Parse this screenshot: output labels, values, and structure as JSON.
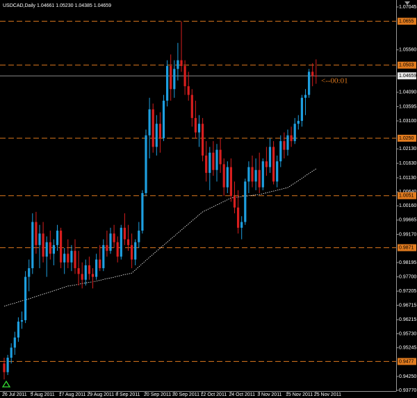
{
  "chart_data": {
    "type": "candlestick",
    "title": "USDCAD,Daily  1.04661 1.05230 1.04385 1.04659",
    "annotation": "<--00:01",
    "categories": [
      "26 Jul 2011",
      null,
      null,
      null,
      null,
      null,
      null,
      null,
      "5 Aug 2011",
      null,
      null,
      null,
      null,
      null,
      null,
      null,
      "17 Aug 2011",
      null,
      null,
      null,
      null,
      null,
      null,
      null,
      "29 Aug 2011",
      null,
      null,
      null,
      null,
      null,
      null,
      null,
      "8 Sep 2011",
      null,
      null,
      null,
      null,
      null,
      null,
      null,
      "20 Sep 2011",
      null,
      null,
      null,
      null,
      null,
      null,
      null,
      "30 Sep 2011",
      null,
      null,
      null,
      null,
      null,
      null,
      null,
      "12 Oct 2011",
      null,
      null,
      null,
      null,
      null,
      null,
      null,
      "24 Oct 2011",
      null,
      null,
      null,
      null,
      null,
      null,
      null,
      "3 Nov 2011",
      null,
      null,
      null,
      null,
      null,
      null,
      null,
      "15 Nov 2011",
      null,
      null,
      null,
      null,
      null,
      null,
      null,
      "25 Nov 2011"
    ],
    "open": [
      0.947,
      0.944,
      0.949,
      0.9525,
      0.956,
      0.9615,
      0.962,
      0.977,
      0.98,
      0.996,
      0.988,
      0.992,
      0.984,
      0.989,
      0.985,
      0.988,
      0.993,
      0.982,
      0.985,
      0.982,
      0.986,
      0.98,
      0.978,
      0.976,
      0.981,
      0.978,
      0.977,
      0.983,
      0.98,
      0.988,
      0.986,
      0.992,
      0.989,
      0.984,
      0.994,
      0.99,
      0.988,
      0.983,
      0.989,
      0.993,
      1.006,
      1.026,
      1.035,
      1.022,
      1.03,
      1.025,
      1.038,
      1.05,
      1.042,
      1.049,
      1.052,
      1.05,
      1.043,
      1.04,
      1.032,
      1.027,
      1.03,
      1.019,
      1.013,
      1.02,
      1.014,
      1.021,
      1.016,
      1.008,
      1.015,
      1.005,
      1.001,
      0.994,
      0.996,
      1.01,
      1.015,
      1.01,
      1.014,
      1.008,
      1.017,
      1.015,
      1.022,
      1.01,
      1.017,
      1.024,
      1.021,
      1.026,
      1.024,
      1.03,
      1.031,
      1.039,
      1.04,
      1.048,
      1.04661
    ],
    "high": [
      0.949,
      0.95,
      0.954,
      0.958,
      0.963,
      0.965,
      0.979,
      0.983,
      0.999,
      0.9995,
      0.995,
      0.996,
      0.991,
      0.993,
      0.99,
      0.995,
      0.994,
      0.987,
      0.99,
      0.988,
      0.99,
      0.986,
      0.982,
      0.983,
      0.984,
      0.98,
      0.985,
      0.988,
      0.99,
      0.993,
      0.994,
      0.995,
      0.991,
      0.995,
      0.999,
      0.995,
      0.992,
      0.99,
      0.996,
      1.007,
      1.028,
      1.039,
      1.037,
      1.033,
      1.034,
      1.04,
      1.052,
      1.054,
      1.052,
      1.058,
      1.0655,
      1.052,
      1.048,
      1.042,
      1.038,
      1.033,
      1.032,
      1.024,
      1.022,
      1.024,
      1.023,
      1.025,
      1.018,
      1.017,
      1.018,
      1.01,
      1.007,
      0.998,
      1.011,
      1.017,
      1.019,
      1.018,
      1.02,
      1.018,
      1.022,
      1.025,
      1.024,
      1.019,
      1.026,
      1.027,
      1.028,
      1.029,
      1.032,
      1.033,
      1.04,
      1.042,
      1.049,
      1.051,
      1.0523
    ],
    "low": [
      0.9415,
      0.943,
      0.947,
      0.95,
      0.9545,
      0.959,
      0.961,
      0.972,
      0.978,
      0.985,
      0.98,
      0.982,
      0.977,
      0.983,
      0.981,
      0.986,
      0.98,
      0.978,
      0.98,
      0.979,
      0.978,
      0.974,
      0.973,
      0.974,
      0.976,
      0.973,
      0.976,
      0.979,
      0.979,
      0.984,
      0.985,
      0.987,
      0.982,
      0.983,
      0.988,
      0.986,
      0.98,
      0.981,
      0.987,
      0.992,
      1.005,
      1.018,
      1.02,
      1.019,
      1.02,
      1.024,
      1.036,
      1.038,
      1.039,
      1.045,
      1.048,
      1.04,
      1.038,
      1.029,
      1.025,
      1.022,
      1.017,
      1.01,
      1.007,
      1.012,
      1.01,
      1.013,
      1.005,
      1.006,
      1.003,
      0.999,
      0.992,
      0.99,
      0.995,
      1.006,
      1.008,
      1.007,
      1.006,
      1.007,
      1.012,
      1.013,
      1.009,
      1.008,
      1.015,
      1.018,
      1.019,
      1.022,
      1.023,
      1.028,
      1.029,
      1.033,
      1.039,
      1.043,
      1.04385
    ],
    "close": [
      0.944,
      0.949,
      0.9525,
      0.956,
      0.9615,
      0.962,
      0.977,
      0.98,
      0.996,
      0.988,
      0.992,
      0.984,
      0.989,
      0.985,
      0.988,
      0.993,
      0.982,
      0.985,
      0.982,
      0.986,
      0.98,
      0.978,
      0.976,
      0.981,
      0.978,
      0.977,
      0.983,
      0.98,
      0.988,
      0.986,
      0.992,
      0.989,
      0.984,
      0.994,
      0.99,
      0.988,
      0.983,
      0.989,
      0.993,
      1.006,
      1.026,
      1.035,
      1.022,
      1.03,
      1.025,
      1.038,
      1.05,
      1.042,
      1.049,
      1.052,
      1.05,
      1.043,
      1.04,
      1.032,
      1.027,
      1.03,
      1.019,
      1.013,
      1.02,
      1.014,
      1.021,
      1.016,
      1.008,
      1.015,
      1.005,
      1.001,
      0.994,
      0.996,
      1.01,
      1.015,
      1.01,
      1.014,
      1.008,
      1.017,
      1.015,
      1.022,
      1.01,
      1.017,
      1.024,
      1.021,
      1.026,
      1.024,
      1.03,
      1.031,
      1.039,
      1.04,
      1.048,
      1.0466,
      1.04659
    ],
    "up_color": "#1e9fe0",
    "down_color": "#d81e1e",
    "ma": {
      "color": "#ffffff",
      "values": [
        0.9668,
        0.9672,
        0.9676,
        0.9679,
        0.9683,
        0.9687,
        0.969,
        0.9694,
        0.9698,
        0.9702,
        0.9706,
        0.971,
        0.9714,
        0.9718,
        0.9722,
        0.9726,
        0.973,
        0.9734,
        0.9738,
        0.974,
        0.9742,
        0.9744,
        0.9747,
        0.9749,
        0.9751,
        0.9753,
        0.9755,
        0.9758,
        0.9761,
        0.9764,
        0.9766,
        0.9769,
        0.9772,
        0.9775,
        0.9778,
        0.978,
        0.9783,
        0.9794,
        0.9805,
        0.9816,
        0.9827,
        0.9838,
        0.9848,
        0.9859,
        0.9869,
        0.988,
        0.989,
        0.9901,
        0.9911,
        0.9922,
        0.9932,
        0.9943,
        0.9953,
        0.9964,
        0.9974,
        0.9985,
        0.9995,
        1.0001,
        1.0007,
        1.0013,
        1.0019,
        1.0025,
        1.0031,
        1.0037,
        1.0043,
        1.0045,
        1.0046,
        1.0048,
        1.0049,
        1.0051,
        1.0052,
        1.0054,
        1.0055,
        1.0058,
        1.0061,
        1.0064,
        1.0067,
        1.007,
        1.0073,
        1.0076,
        1.0079,
        1.0087,
        1.0095,
        1.0103,
        1.0111,
        1.012,
        1.0128,
        1.0136,
        1.0144
      ]
    },
    "levels": [
      1.0655,
      1.0503,
      {
        "value": 1.025,
        "label": "1.0250"
      },
      1.0051,
      0.9871,
      0.9477
    ],
    "level_color": "#e07a1e",
    "current": 1.04659,
    "ylim": [
      0.9377,
      1.07045
    ],
    "yticks": [
      1.07045,
      {
        "value": 1.0556,
        "label": "1.05560"
      },
      {
        "value": 1.0409,
        "label": "1.04090"
      },
      1.03595,
      {
        "value": 1.031,
        "label": "1.03100"
      },
      {
        "value": 1.0213,
        "label": "1.02130"
      },
      {
        "value": 1.0163,
        "label": "1.01630"
      },
      {
        "value": 1.0113,
        "label": "1.01130"
      },
      {
        "value": 1.0064,
        "label": "1.00640"
      },
      {
        "value": 1.0016,
        "label": "1.00160"
      },
      0.99665,
      {
        "value": 0.9917,
        "label": "0.99170"
      },
      0.98195,
      {
        "value": 0.977,
        "label": "0.97700"
      },
      0.97205,
      0.96715,
      0.96215,
      {
        "value": 0.9573,
        "label": "0.95730"
      },
      0.95245,
      {
        "value": 0.9425,
        "label": "0.94250"
      },
      {
        "value": 0.9377,
        "label": "0.93770"
      }
    ]
  }
}
